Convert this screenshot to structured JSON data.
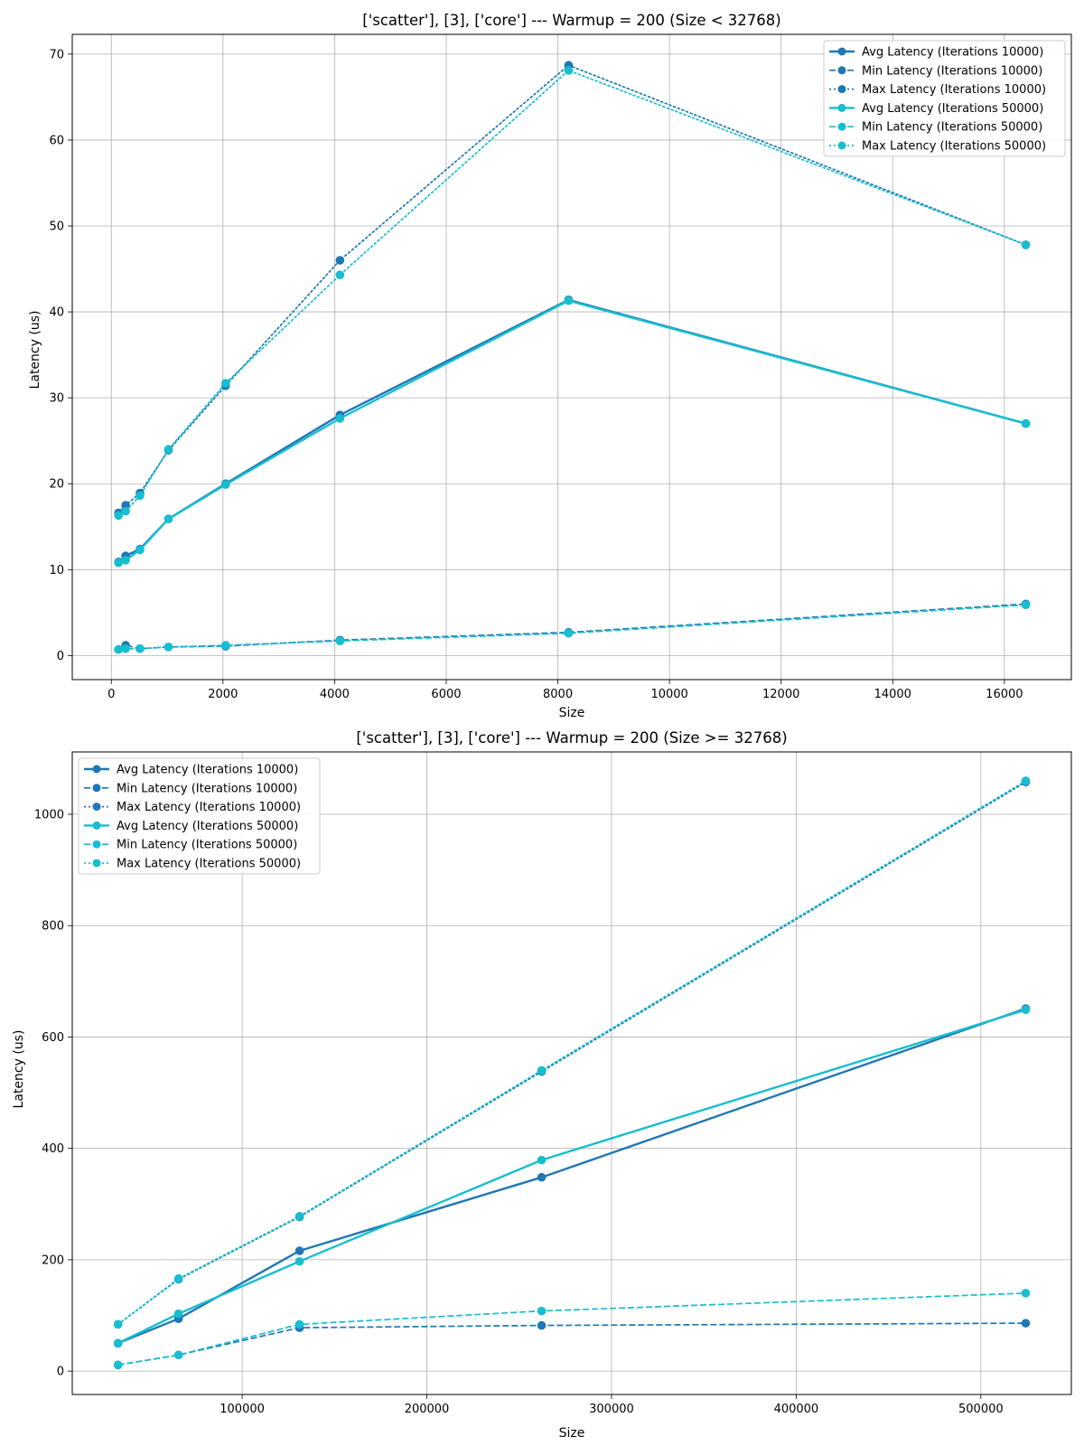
{
  "colors": {
    "iter10000": "#1f77b4",
    "iter50000": "#17becf",
    "grid": "#b0b0b0"
  },
  "chart_data": [
    {
      "type": "line",
      "title": "['scatter'], [3], ['core'] --- Warmup = 200 (Size < 32768)",
      "xlabel": "Size",
      "ylabel": "Latency (us)",
      "xlim": [
        -700,
        17200
      ],
      "ylim": [
        -2.8,
        72.3
      ],
      "xticks": [
        0,
        2000,
        4000,
        6000,
        8000,
        10000,
        12000,
        14000,
        16000
      ],
      "yticks": [
        0,
        10,
        20,
        30,
        40,
        50,
        60,
        70
      ],
      "grid": true,
      "legend_position": "top-right",
      "x": [
        128,
        256,
        512,
        1024,
        2048,
        4096,
        8192,
        16384
      ],
      "series": [
        {
          "name": "Avg Latency (Iterations 10000)",
          "color": "#1f77b4",
          "style": "solid",
          "values": [
            10.9,
            11.6,
            12.4,
            15.9,
            20.0,
            28.0,
            41.4,
            27.0
          ]
        },
        {
          "name": "Min Latency (Iterations 10000)",
          "color": "#1f77b4",
          "style": "dashed",
          "values": [
            0.7,
            1.2,
            0.8,
            1.0,
            1.1,
            1.8,
            2.7,
            6.0
          ]
        },
        {
          "name": "Max Latency (Iterations 10000)",
          "color": "#1f77b4",
          "style": "dotted",
          "values": [
            16.6,
            17.5,
            18.9,
            23.9,
            31.4,
            46.0,
            68.7,
            47.8
          ]
        },
        {
          "name": "Avg Latency (Iterations 50000)",
          "color": "#17becf",
          "style": "solid",
          "values": [
            10.8,
            11.1,
            12.3,
            15.9,
            19.9,
            27.6,
            41.3,
            27.0
          ]
        },
        {
          "name": "Min Latency (Iterations 50000)",
          "color": "#17becf",
          "style": "dashed",
          "values": [
            0.7,
            0.8,
            0.8,
            1.0,
            1.2,
            1.7,
            2.6,
            5.9
          ]
        },
        {
          "name": "Max Latency (Iterations 50000)",
          "color": "#17becf",
          "style": "dotted",
          "values": [
            16.3,
            16.8,
            18.6,
            24.0,
            31.7,
            44.3,
            68.1,
            47.8
          ]
        }
      ]
    },
    {
      "type": "line",
      "title": "['scatter'], [3], ['core'] --- Warmup = 200 (Size >= 32768)",
      "xlabel": "Size",
      "ylabel": "Latency (us)",
      "xlim": [
        8000,
        549000
      ],
      "ylim": [
        -42,
        1112
      ],
      "xticks": [
        100000,
        200000,
        300000,
        400000,
        500000
      ],
      "yticks": [
        0,
        200,
        400,
        600,
        800,
        1000
      ],
      "grid": true,
      "legend_position": "top-left",
      "x": [
        32768,
        65536,
        131072,
        262144,
        524288
      ],
      "series": [
        {
          "name": "Avg Latency (Iterations 10000)",
          "color": "#1f77b4",
          "style": "solid",
          "values": [
            50,
            94,
            216,
            348,
            651
          ]
        },
        {
          "name": "Min Latency (Iterations 10000)",
          "color": "#1f77b4",
          "style": "dashed",
          "values": [
            11,
            29,
            78,
            82,
            86
          ]
        },
        {
          "name": "Max Latency (Iterations 10000)",
          "color": "#1f77b4",
          "style": "dotted",
          "values": [
            84,
            165,
            277,
            538,
            1058
          ]
        },
        {
          "name": "Avg Latency (Iterations 50000)",
          "color": "#17becf",
          "style": "solid",
          "values": [
            50,
            103,
            197,
            379,
            649
          ]
        },
        {
          "name": "Min Latency (Iterations 50000)",
          "color": "#17becf",
          "style": "dashed",
          "values": [
            11,
            29,
            84,
            108,
            140
          ]
        },
        {
          "name": "Max Latency (Iterations 50000)",
          "color": "#17becf",
          "style": "dotted",
          "values": [
            84,
            166,
            278,
            540,
            1060
          ]
        }
      ]
    }
  ]
}
